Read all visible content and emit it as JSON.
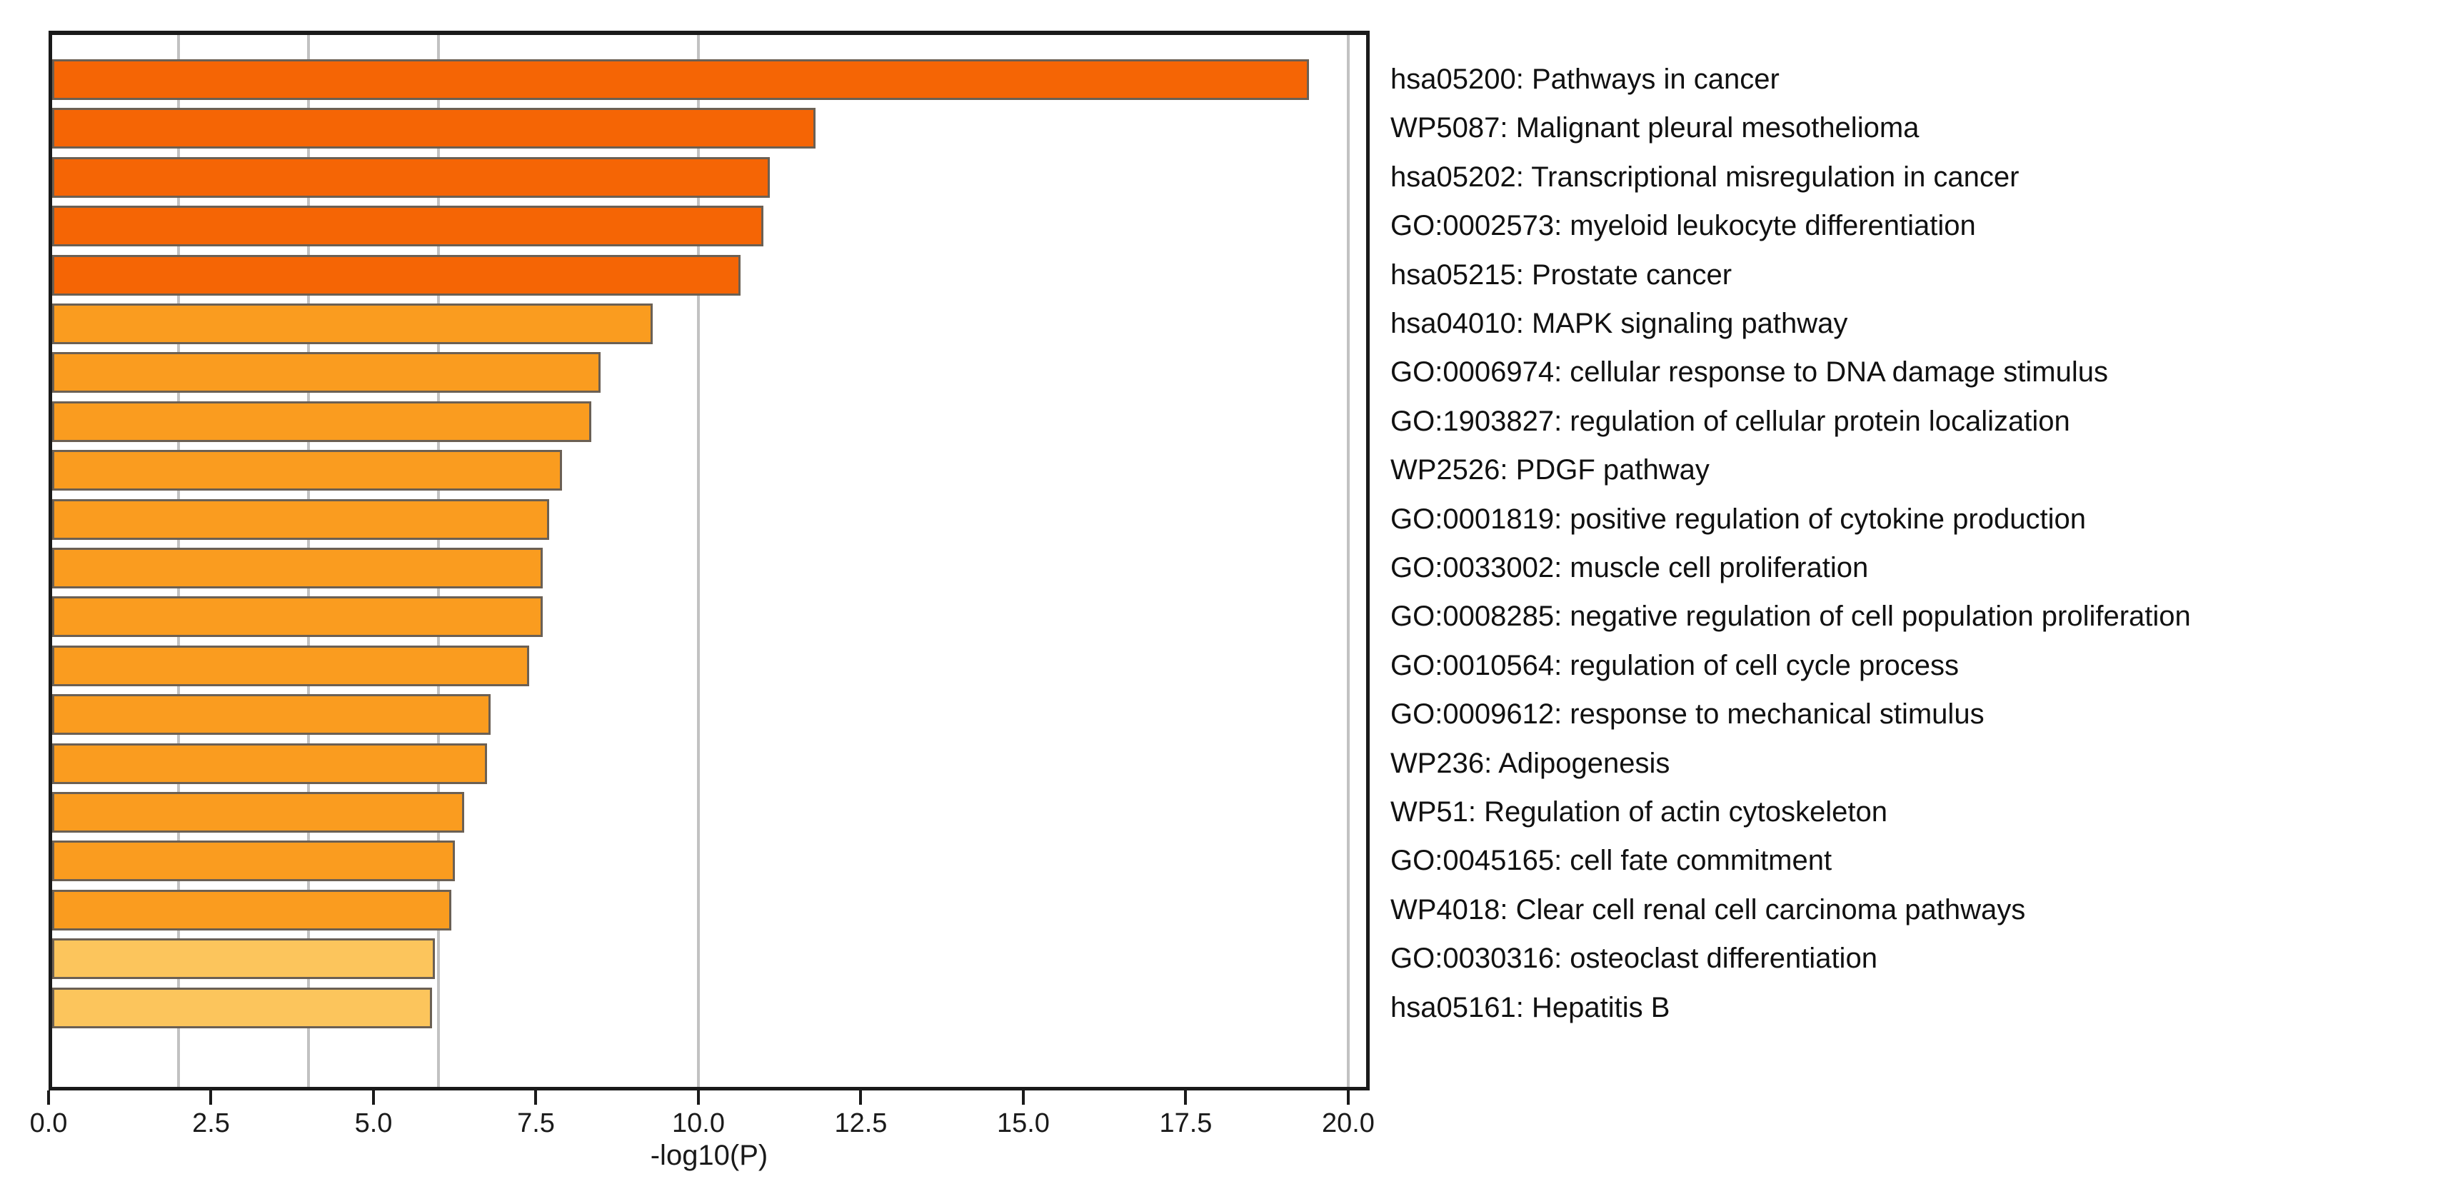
{
  "colors": {
    "tier_high": "#F56505",
    "tier_mid": "#FA9C1F",
    "tier_low": "#FCC55C",
    "bar_edge": "#6B6054",
    "gridline": "#C2C2C2",
    "axis": "#1A1A1A",
    "text": "#111111"
  },
  "chart_data": {
    "type": "bar",
    "orientation": "horizontal",
    "title": "",
    "xlabel": "-log10(P)",
    "ylabel": "",
    "xlim": [
      0,
      20.33
    ],
    "grid": true,
    "reference_lines": [
      2,
      4,
      6,
      10,
      20
    ],
    "x_ticks": [
      0,
      2.5,
      5,
      7.5,
      10,
      12.5,
      15,
      17.5,
      20
    ],
    "x_tick_labels": [
      "0.0",
      "2.5",
      "5.0",
      "7.5",
      "10.0",
      "12.5",
      "15.0",
      "17.5",
      "20.0"
    ],
    "bars": [
      {
        "label": "hsa05200: Pathways in cancer",
        "value": 19.4,
        "tier": "tier_high"
      },
      {
        "label": "WP5087: Malignant pleural mesothelioma",
        "value": 11.8,
        "tier": "tier_high"
      },
      {
        "label": "hsa05202: Transcriptional misregulation in cancer",
        "value": 11.1,
        "tier": "tier_high"
      },
      {
        "label": "GO:0002573: myeloid leukocyte differentiation",
        "value": 11.0,
        "tier": "tier_high"
      },
      {
        "label": "hsa05215: Prostate cancer",
        "value": 10.65,
        "tier": "tier_high"
      },
      {
        "label": "hsa04010: MAPK signaling pathway",
        "value": 9.3,
        "tier": "tier_mid"
      },
      {
        "label": "GO:0006974: cellular response to DNA damage stimulus",
        "value": 8.5,
        "tier": "tier_mid"
      },
      {
        "label": "GO:1903827: regulation of cellular protein localization",
        "value": 8.35,
        "tier": "tier_mid"
      },
      {
        "label": "WP2526: PDGF pathway",
        "value": 7.9,
        "tier": "tier_mid"
      },
      {
        "label": "GO:0001819: positive regulation of cytokine production",
        "value": 7.7,
        "tier": "tier_mid"
      },
      {
        "label": "GO:0033002: muscle cell proliferation",
        "value": 7.6,
        "tier": "tier_mid"
      },
      {
        "label": "GO:0008285: negative regulation of cell population proliferation",
        "value": 7.6,
        "tier": "tier_mid"
      },
      {
        "label": "GO:0010564: regulation of cell cycle process",
        "value": 7.4,
        "tier": "tier_mid"
      },
      {
        "label": "GO:0009612: response to mechanical stimulus",
        "value": 6.8,
        "tier": "tier_mid"
      },
      {
        "label": "WP236: Adipogenesis",
        "value": 6.75,
        "tier": "tier_mid"
      },
      {
        "label": "WP51: Regulation of actin cytoskeleton",
        "value": 6.4,
        "tier": "tier_mid"
      },
      {
        "label": "GO:0045165: cell fate commitment",
        "value": 6.25,
        "tier": "tier_mid"
      },
      {
        "label": "WP4018: Clear cell renal cell carcinoma pathways",
        "value": 6.2,
        "tier": "tier_mid"
      },
      {
        "label": "GO:0030316: osteoclast differentiation",
        "value": 5.95,
        "tier": "tier_low"
      },
      {
        "label": "hsa05161: Hepatitis B",
        "value": 5.9,
        "tier": "tier_low"
      }
    ]
  }
}
